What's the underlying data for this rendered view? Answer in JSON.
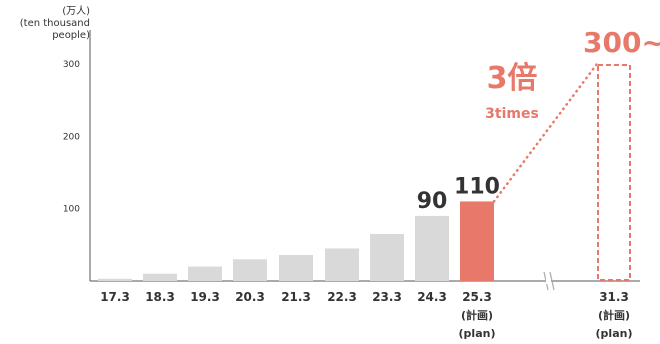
{
  "chart_data": {
    "type": "bar",
    "unit_label": [
      "(万人)",
      "(ten thousand",
      "people)"
    ],
    "y_ticks": [
      100,
      200,
      300
    ],
    "ylim": [
      0,
      300
    ],
    "categories": [
      "17.3",
      "18.3",
      "19.3",
      "20.3",
      "21.3",
      "22.3",
      "23.3",
      "24.3",
      "25.3",
      "31.3"
    ],
    "category_sublabels": {
      "25.3": [
        "(計画)",
        "(plan)"
      ],
      "31.3": [
        "(計画)",
        "(plan)"
      ]
    },
    "values": [
      3,
      10,
      20,
      30,
      36,
      45,
      65,
      90,
      110,
      300
    ],
    "data_labels": {
      "24.3": "90",
      "25.3": "110",
      "31.3": "300~"
    },
    "annotation": {
      "multiplier": "3倍",
      "multiplier_en": "3times"
    },
    "axis_break": true,
    "colors": {
      "bar": "#d9d9d9",
      "highlight": "#e8796a",
      "text": "#333333",
      "axis": "#555555"
    }
  }
}
